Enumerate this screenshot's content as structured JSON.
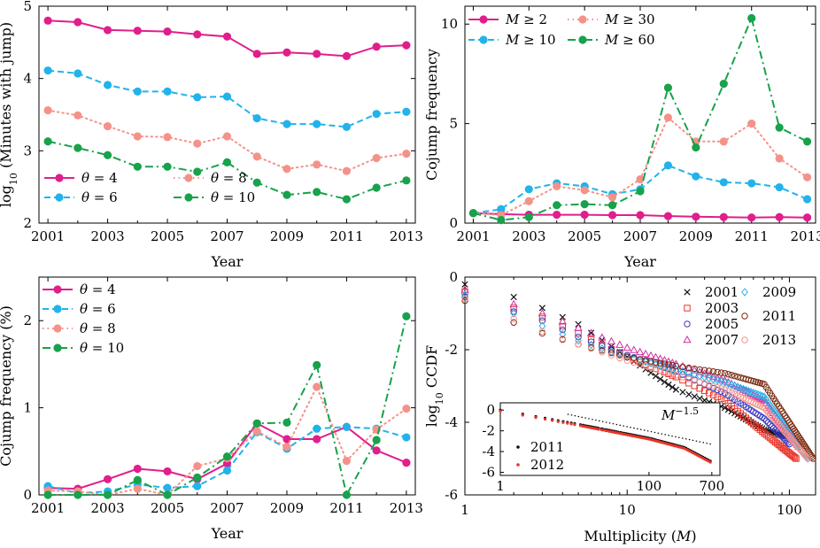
{
  "figure": {
    "background": "#ffffff"
  },
  "chart_data": [
    {
      "id": "a",
      "type": "line",
      "xlabel": "Year",
      "ylabel": "log10 (Minutes with jump)",
      "ylabel_parts": {
        "pre": "log",
        "sub": "10",
        "post": " (Minutes with jump)"
      },
      "xlim": [
        2000.7,
        2013.3
      ],
      "ylim": [
        2,
        5
      ],
      "xticks": [
        2001,
        2003,
        2005,
        2007,
        2009,
        2011,
        2013
      ],
      "yticks": [
        2,
        3,
        4,
        5
      ],
      "legend_position": "bottom-left",
      "legend_columns": 2,
      "x": [
        2001,
        2002,
        2003,
        2004,
        2005,
        2006,
        2007,
        2008,
        2009,
        2010,
        2011,
        2012,
        2013
      ],
      "series": [
        {
          "name": "θ = 4",
          "style": "solid",
          "color": "#e01e8c",
          "values": [
            4.8,
            4.78,
            4.67,
            4.66,
            4.65,
            4.61,
            4.58,
            4.34,
            4.36,
            4.34,
            4.31,
            4.44,
            4.46
          ]
        },
        {
          "name": "θ = 6",
          "style": "dashed",
          "color": "#22b3ea",
          "values": [
            4.11,
            4.07,
            3.91,
            3.82,
            3.82,
            3.74,
            3.75,
            3.45,
            3.37,
            3.37,
            3.33,
            3.51,
            3.54
          ]
        },
        {
          "name": "θ = 8",
          "style": "dotted",
          "color": "#f4928a",
          "values": [
            3.56,
            3.49,
            3.34,
            3.2,
            3.19,
            3.1,
            3.2,
            2.92,
            2.75,
            2.81,
            2.72,
            2.9,
            2.96
          ]
        },
        {
          "name": "θ = 10",
          "style": "dashdot",
          "color": "#17a24b",
          "values": [
            3.13,
            3.04,
            2.94,
            2.78,
            2.78,
            2.71,
            2.84,
            2.56,
            2.39,
            2.43,
            2.33,
            2.49,
            2.59
          ]
        }
      ]
    },
    {
      "id": "b",
      "type": "line",
      "xlabel": "Year",
      "ylabel": "Cojump frequency",
      "xlim": [
        2000.7,
        2013.3
      ],
      "ylim": [
        0,
        10.9
      ],
      "xticks": [
        2001,
        2003,
        2005,
        2007,
        2009,
        2011,
        2013
      ],
      "yticks": [
        0,
        5,
        10
      ],
      "legend_position": "top-left",
      "legend_columns": 2,
      "x": [
        2001,
        2002,
        2003,
        2004,
        2005,
        2006,
        2007,
        2008,
        2009,
        2010,
        2011,
        2012,
        2013
      ],
      "series": [
        {
          "name": "M ≥ 2",
          "style": "solid",
          "color": "#e01e8c",
          "values": [
            0.5,
            0.45,
            0.42,
            0.42,
            0.42,
            0.4,
            0.4,
            0.35,
            0.32,
            0.3,
            0.28,
            0.3,
            0.28
          ]
        },
        {
          "name": "M ≥ 10",
          "style": "dashed",
          "color": "#22b3ea",
          "values": [
            0.5,
            0.7,
            1.7,
            2.0,
            1.85,
            1.45,
            1.7,
            2.9,
            2.35,
            2.05,
            2.0,
            1.8,
            1.2
          ]
        },
        {
          "name": "M ≥ 30",
          "style": "dotted",
          "color": "#f4928a",
          "values": [
            0.5,
            0.4,
            1.1,
            1.85,
            1.65,
            1.3,
            2.2,
            5.3,
            4.1,
            4.1,
            5.0,
            3.25,
            2.3
          ]
        },
        {
          "name": "M ≥ 60",
          "style": "dashdot",
          "color": "#17a24b",
          "values": [
            0.5,
            0.15,
            0.3,
            0.9,
            0.95,
            0.9,
            1.6,
            6.8,
            3.8,
            7.0,
            10.3,
            4.8,
            4.1
          ]
        }
      ]
    },
    {
      "id": "c",
      "type": "line",
      "xlabel": "Year",
      "ylabel": "Cojump frequency (%)",
      "xlim": [
        2000.7,
        2013.3
      ],
      "ylim": [
        0,
        2.5
      ],
      "xticks": [
        2001,
        2003,
        2005,
        2007,
        2009,
        2011,
        2013
      ],
      "yticks": [
        0,
        1,
        2
      ],
      "legend_position": "top-left",
      "legend_columns": 1,
      "x": [
        2001,
        2002,
        2003,
        2004,
        2005,
        2006,
        2007,
        2008,
        2009,
        2010,
        2011,
        2012,
        2013
      ],
      "series": [
        {
          "name": "θ = 4",
          "style": "solid",
          "color": "#e01e8c",
          "values": [
            0.08,
            0.07,
            0.18,
            0.3,
            0.27,
            0.18,
            0.36,
            0.82,
            0.64,
            0.64,
            0.78,
            0.51,
            0.37
          ]
        },
        {
          "name": "θ = 6",
          "style": "dashed",
          "color": "#22b3ea",
          "values": [
            0.1,
            0.02,
            0.04,
            0.12,
            0.08,
            0.1,
            0.28,
            0.72,
            0.53,
            0.76,
            0.78,
            0.76,
            0.66
          ]
        },
        {
          "name": "θ = 8",
          "style": "dotted",
          "color": "#f4928a",
          "values": [
            0.05,
            0.04,
            0.0,
            0.07,
            0.0,
            0.33,
            0.42,
            0.73,
            0.55,
            1.24,
            0.39,
            0.75,
            0.99
          ]
        },
        {
          "name": "θ = 10",
          "style": "dashdot",
          "color": "#17a24b",
          "values": [
            0.0,
            0.0,
            0.0,
            0.17,
            0.0,
            0.2,
            0.44,
            0.82,
            0.83,
            1.49,
            0.0,
            0.63,
            2.05
          ]
        }
      ]
    },
    {
      "id": "d",
      "type": "scatter",
      "xscale": "log",
      "xlabel": "Multiplicity (M)",
      "xlabel_parts": {
        "pre": "Multiplicity (",
        "var": "M",
        "post": ")"
      },
      "ylabel": "log10 CCDF",
      "ylabel_parts": {
        "pre": "log",
        "sub": "10",
        "post": " CCDF"
      },
      "xlim": [
        1,
        145
      ],
      "ylim": [
        -6,
        0
      ],
      "xticks": [
        1,
        10,
        100
      ],
      "xtick_labels": [
        "1",
        "10",
        "100"
      ],
      "yticks": [
        -6,
        -4,
        -2,
        0
      ],
      "legend_position": "top-right",
      "legend_columns": 2,
      "series": [
        {
          "name": "2001",
          "marker": "x",
          "color": "#111111",
          "tail_m": 95,
          "anchors": [
            [
              1,
              -0.2
            ],
            [
              2,
              -0.55
            ],
            [
              3,
              -0.85
            ],
            [
              5,
              -1.3
            ],
            [
              10,
              -2.2
            ],
            [
              20,
              -3.1
            ],
            [
              40,
              -3.6
            ],
            [
              70,
              -4.2
            ],
            [
              95,
              -4.4
            ]
          ]
        },
        {
          "name": "2003",
          "marker": "square",
          "color": "#e8352a",
          "tail_m": 110,
          "anchors": [
            [
              1,
              -0.4
            ],
            [
              2,
              -0.85
            ],
            [
              3,
              -1.1
            ],
            [
              5,
              -1.55
            ],
            [
              10,
              -2.2
            ],
            [
              20,
              -2.75
            ],
            [
              40,
              -3.4
            ],
            [
              70,
              -4.3
            ],
            [
              110,
              -5.0
            ]
          ]
        },
        {
          "name": "2005",
          "marker": "circle",
          "color": "#3b3bc0",
          "tail_m": 100,
          "anchors": [
            [
              1,
              -0.55
            ],
            [
              2,
              -0.95
            ],
            [
              3,
              -1.2
            ],
            [
              5,
              -1.65
            ],
            [
              10,
              -2.15
            ],
            [
              20,
              -2.6
            ],
            [
              40,
              -3.2
            ],
            [
              70,
              -3.9
            ],
            [
              100,
              -4.6
            ]
          ]
        },
        {
          "name": "2007",
          "marker": "triangle",
          "color": "#d22fa0",
          "tail_m": 115,
          "anchors": [
            [
              1,
              -0.35
            ],
            [
              2,
              -0.75
            ],
            [
              3,
              -1.0
            ],
            [
              5,
              -1.4
            ],
            [
              10,
              -1.95
            ],
            [
              20,
              -2.4
            ],
            [
              40,
              -2.85
            ],
            [
              70,
              -3.4
            ],
            [
              115,
              -4.7
            ]
          ]
        },
        {
          "name": "2009",
          "marker": "diamond",
          "color": "#22b3ea",
          "tail_m": 130,
          "anchors": [
            [
              1,
              -0.5
            ],
            [
              2,
              -1.0
            ],
            [
              3,
              -1.35
            ],
            [
              5,
              -1.75
            ],
            [
              10,
              -2.2
            ],
            [
              20,
              -2.55
            ],
            [
              40,
              -2.9
            ],
            [
              70,
              -3.3
            ],
            [
              130,
              -5.0
            ]
          ]
        },
        {
          "name": "2011",
          "marker": "circle",
          "color": "#7a2a0e",
          "tail_m": 140,
          "anchors": [
            [
              1,
              -0.65
            ],
            [
              2,
              -1.25
            ],
            [
              3,
              -1.55
            ],
            [
              5,
              -1.85
            ],
            [
              10,
              -2.2
            ],
            [
              20,
              -2.45
            ],
            [
              40,
              -2.65
            ],
            [
              70,
              -2.95
            ],
            [
              140,
              -5.0
            ]
          ]
        },
        {
          "name": "2013",
          "marker": "circle",
          "color": "#f4928a",
          "tail_m": 130,
          "anchors": [
            [
              1,
              -0.6
            ],
            [
              2,
              -1.15
            ],
            [
              3,
              -1.5
            ],
            [
              5,
              -1.85
            ],
            [
              10,
              -2.3
            ],
            [
              20,
              -2.7
            ],
            [
              40,
              -3.1
            ],
            [
              70,
              -3.6
            ],
            [
              130,
              -5.0
            ]
          ]
        }
      ],
      "inset": {
        "xscale": "log",
        "xlim": [
          1,
          900
        ],
        "ylim": [
          -6.3,
          0.7
        ],
        "xticks": [
          1,
          100,
          700
        ],
        "xtick_labels": [
          "1",
          "100",
          "700"
        ],
        "yticks": [
          0,
          -2,
          -4,
          -6
        ],
        "ytick_labels": [
          "0",
          "-2",
          "-4",
          "-6"
        ],
        "annotation": "M",
        "annotation_exponent": "−1.5",
        "legend_position": "bottom-left",
        "series": [
          {
            "name": "2011",
            "marker": "dot",
            "color": "#111111",
            "anchors": [
              [
                1,
                0
              ],
              [
                10,
                -1.3
              ],
              [
                100,
                -2.7
              ],
              [
                300,
                -3.6
              ],
              [
                700,
                -5.0
              ]
            ]
          },
          {
            "name": "2012",
            "marker": "dot",
            "color": "#e8352a",
            "anchors": [
              [
                1,
                -0.1
              ],
              [
                10,
                -1.4
              ],
              [
                100,
                -2.8
              ],
              [
                300,
                -3.7
              ],
              [
                700,
                -5.1
              ]
            ]
          }
        ],
        "reference_line": {
          "style": "dotted",
          "color": "#000000",
          "anchors": [
            [
              8,
              -0.4
            ],
            [
              700,
              -3.3
            ]
          ]
        }
      }
    }
  ]
}
